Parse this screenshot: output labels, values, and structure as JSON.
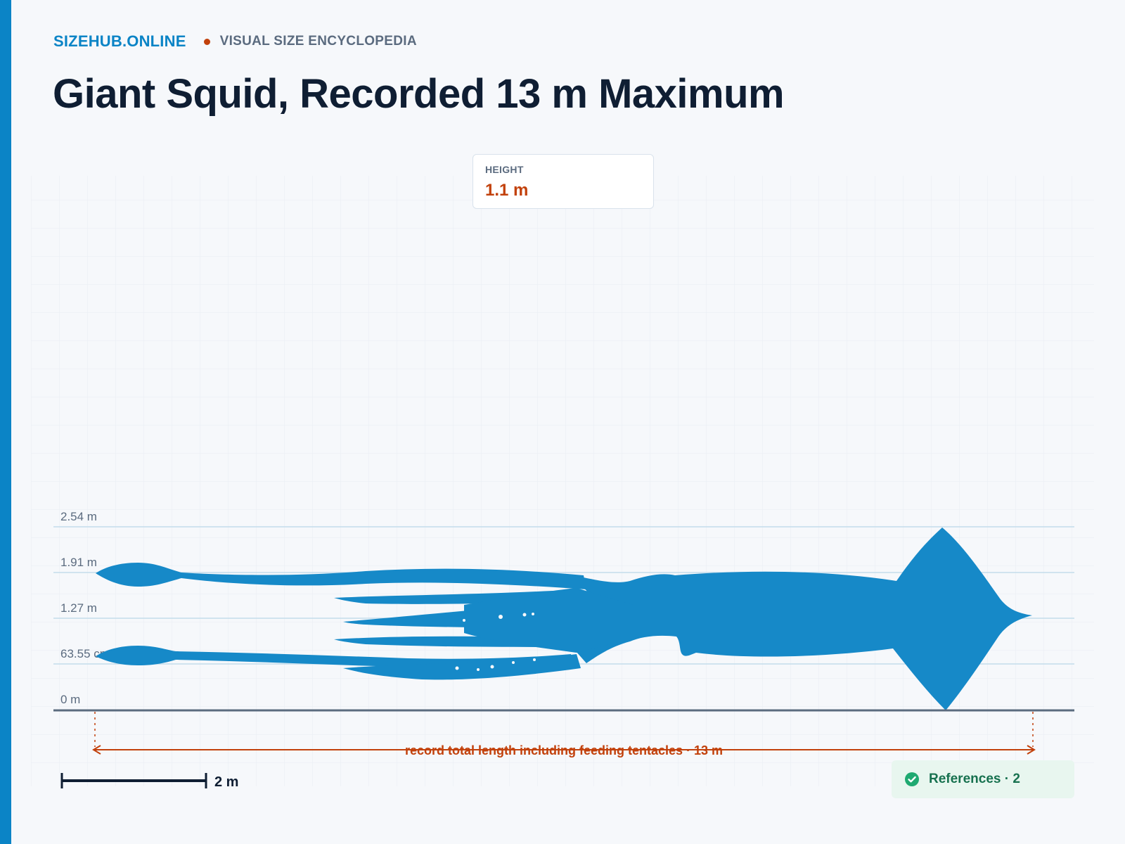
{
  "header": {
    "brand": "SIZEHUB.ONLINE",
    "tagline": "VISUAL SIZE ENCYCLOPEDIA"
  },
  "title": "Giant Squid, Recorded 13 m Maximum",
  "height_card": {
    "label": "HEIGHT",
    "value": "1.1 m"
  },
  "y_axis": {
    "unit": "m",
    "ticks": [
      "2.54 m",
      "1.91 m",
      "1.27 m",
      "63.55 cm",
      "0 m"
    ]
  },
  "length_annotation": {
    "label": "record total length including feeding tentacles · 13 m",
    "value_m": 13
  },
  "scale_bar": {
    "label": "2 m",
    "value_m": 2
  },
  "references": {
    "label": "References · 2",
    "count": 2
  },
  "colors": {
    "accent": "#0b84c6",
    "silhouette": "#1689c8",
    "highlight": "#c2410c",
    "title": "#0f1e33",
    "muted": "#5b6b7f",
    "success": "#17714f",
    "success_bg": "#e8f6ef"
  }
}
